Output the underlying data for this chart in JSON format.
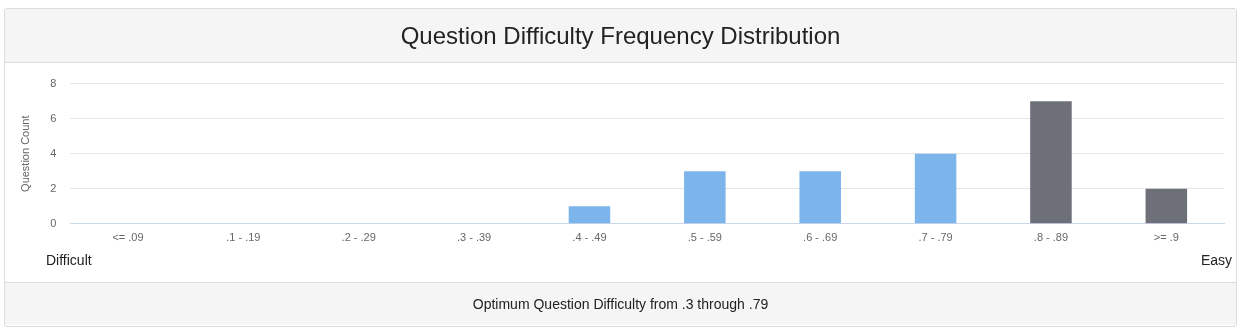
{
  "chart_data": {
    "type": "bar",
    "title": "Question Difficulty Frequency Distribution",
    "ylabel": "Question Count",
    "categories": [
      "<= .09",
      ".1 - .19",
      ".2 - .29",
      ".3 - .39",
      ".4 - .49",
      ".5 - .59",
      ".6 - .69",
      ".7 - .79",
      ".8 - .89",
      ">= .9"
    ],
    "values": [
      0,
      0,
      0,
      0,
      1,
      3,
      3,
      4,
      7,
      2
    ],
    "colors": [
      "#7cb5ec",
      "#7cb5ec",
      "#7cb5ec",
      "#7cb5ec",
      "#7cb5ec",
      "#7cb5ec",
      "#7cb5ec",
      "#7cb5ec",
      "#6d7078",
      "#6d7078"
    ],
    "ylim": [
      0,
      8
    ],
    "yticks": [
      0,
      2,
      4,
      6,
      8
    ],
    "grid": "y",
    "legend": false,
    "annotations": [
      "Difficult",
      "Easy",
      "Optimum Question Difficulty from .3 through .79"
    ]
  }
}
